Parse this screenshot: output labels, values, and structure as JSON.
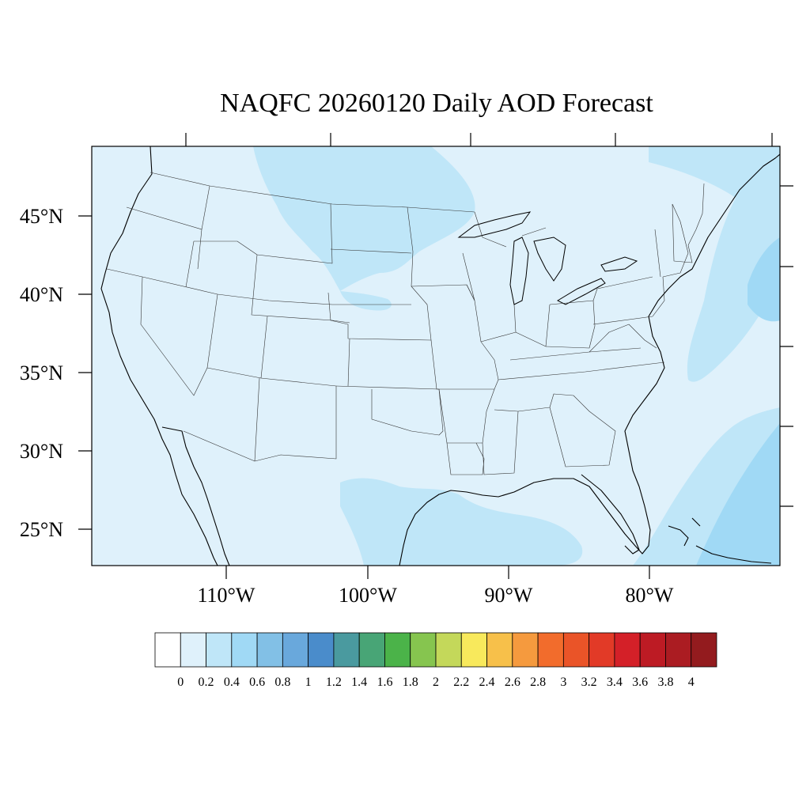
{
  "title": "NAQFC 20260120 Daily AOD Forecast",
  "latitude_labels": [
    "45°N",
    "40°N",
    "35°N",
    "30°N",
    "25°N"
  ],
  "longitude_labels": [
    "110°W",
    "100°W",
    "90°W",
    "80°W"
  ],
  "colorbar": {
    "labels": [
      "0",
      "0.2",
      "0.4",
      "0.6",
      "0.8",
      "1",
      "1.2",
      "1.4",
      "1.6",
      "1.8",
      "2",
      "2.2",
      "2.4",
      "2.6",
      "2.8",
      "3",
      "3.2",
      "3.4",
      "3.6",
      "3.8",
      "4"
    ],
    "colors": [
      "#ffffff",
      "#dff1fb",
      "#bfe6f8",
      "#a0d9f5",
      "#82c0e6",
      "#69a8dc",
      "#4a8ccb",
      "#4a9a9f",
      "#48a576",
      "#4bb349",
      "#86c54f",
      "#c4d85a",
      "#f8e95c",
      "#f7c04a",
      "#f59a3e",
      "#f26c2c",
      "#ea5428",
      "#e23a27",
      "#d42028",
      "#bd1b24",
      "#ab1c22",
      "#931b1e"
    ]
  },
  "map_background_color": "#dff1fb",
  "aod_levels": [
    {
      "range": "0.2-0.4",
      "color": "#bfe6f8"
    },
    {
      "range": "0.4-0.6",
      "color": "#a0d9f5"
    }
  ]
}
